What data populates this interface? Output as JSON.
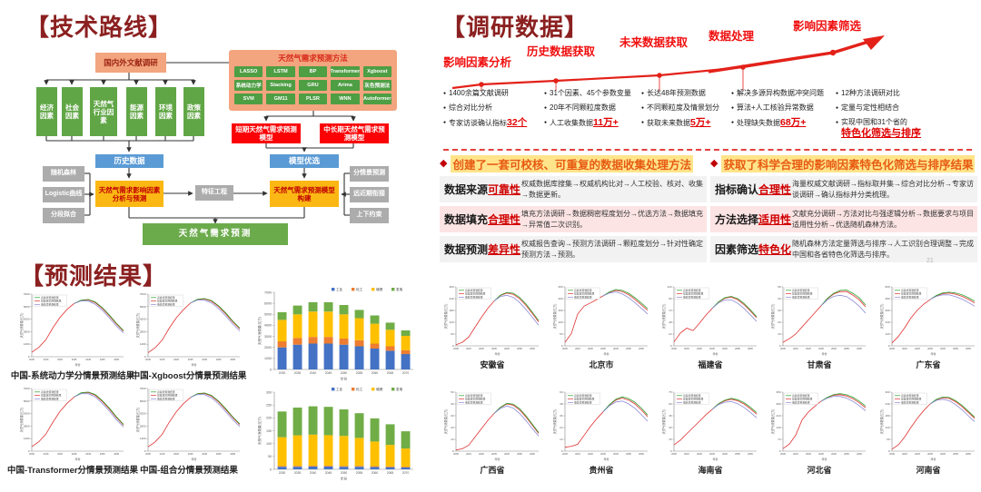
{
  "colors": {
    "maroon": "#8B2020",
    "accent_red": "#E32119",
    "bar": [
      "#4472C4",
      "#ED7D31",
      "#FFC000",
      "#70AD47"
    ],
    "line": [
      "#2CA02C",
      "#E03131",
      "#8A8AD6"
    ]
  },
  "left": {
    "tech_title": "【技术路线】",
    "result_title": "【预测结果】",
    "flow": {
      "literature": "国内外文献调研",
      "methods_panel_title": "天然气需求预测方法",
      "methods": [
        [
          "LASSO",
          "LSTM",
          "BP",
          "Transformer",
          "Xgboost"
        ],
        [
          "系统动力学",
          "Stacking",
          "GRU",
          "Arima",
          "灰色预测法"
        ],
        [
          "SVM",
          "GM11",
          "PLSR",
          "WNN",
          "Autoformer"
        ]
      ],
      "factors": [
        "经济因素",
        "社会因素",
        "天然气行业因素",
        "能源因素",
        "环境因素",
        "政策因素"
      ],
      "short_model": "短期天然气需求预测模型",
      "long_model": "中长期天然气需求预测模型",
      "history_data": "历史数据",
      "model_select": "模型优选",
      "left_aux": [
        "随机森林",
        "Logistic曲线",
        "分段拟合"
      ],
      "right_aux": [
        "分情景预测",
        "远近期衔接",
        "上下约束"
      ],
      "influence_box": "天然气需求影响因素分析与预测",
      "feature_box": "特征工程",
      "build_box": "天然气需求预测模型构建",
      "final_box": "天然气需求预测"
    }
  },
  "right": {
    "title": "【调研数据】",
    "page_number": "21",
    "timeline": {
      "stages": [
        {
          "label": "影响因素分析",
          "bullets": [
            {
              "t": "1400余篇文献调研"
            },
            {
              "t": "综合对比分析"
            },
            {
              "t": "专家访谈确认指标",
              "h": "32个"
            }
          ]
        },
        {
          "label": "历史数据获取",
          "bullets": [
            {
              "t": "31个因素、45个参数变量"
            },
            {
              "t": "20年不同颗粒度数据"
            },
            {
              "t": "人工收集数据",
              "h": "11万+"
            }
          ]
        },
        {
          "label": "未来数据获取",
          "bullets": [
            {
              "t": "长达48年预测数据"
            },
            {
              "t": "不同颗粒度及情景划分"
            },
            {
              "t": "获取未来数据",
              "h": "5万+"
            }
          ]
        },
        {
          "label": "数据处理",
          "bullets": [
            {
              "t": "解决多源异构数据冲突问题"
            },
            {
              "t": "算法+人工核验异常数据"
            },
            {
              "t": "处理缺失数据",
              "h": "68万+"
            }
          ]
        },
        {
          "label": "影响因素筛选",
          "bullets": [
            {
              "t": "12种方法调研对比"
            },
            {
              "t": "定量与定性相结合"
            },
            {
              "t": "实现中国和31个省的",
              "h": "特色化筛选与排序",
              "h_block": true
            }
          ]
        }
      ]
    },
    "sections": [
      {
        "header": "创建了一套可校核、可重复的数据收集处理方法",
        "rows": [
          {
            "label": "数据来源",
            "key": "可靠性",
            "desc": "权威数据库搜集→权威机构比对→人工校验、核对、收集→数据更新。"
          },
          {
            "label": "数据填充",
            "key": "合理性",
            "desc": "填充方法调研→数据稠密程度划分→优选方法→数据填充→异常值二次识别。"
          },
          {
            "label": "数据预测",
            "key": "差异性",
            "desc": "权威报告查询→预测方法调研→颗粒度划分→针对性确定预测方法→预测。"
          }
        ]
      },
      {
        "header": "获取了科学合理的影响因素特色化筛选与排序结果",
        "rows": [
          {
            "label": "指标确认",
            "key": "合理性",
            "desc": "海量权威文献调研→指标取并集→综合对比分析→专家访谈调研→确认指标并分类梳理。"
          },
          {
            "label": "方法选择",
            "key": "适用性",
            "desc": "文献充分调研→方法对比与强逻辑分析→数据要求与项目适用性分析→优选随机森林方法。"
          },
          {
            "label": "因素筛选",
            "key": "特色化",
            "desc": "随机森林方法定量筛选与排序→人工识别合理调整→完成中国和各省特色化筛选与排序。"
          }
        ]
      }
    ]
  },
  "chart_data": [
    {
      "type": "line",
      "caption": "中国-系统动力学分情景预测结果",
      "x": [
        2005,
        2010,
        2015,
        2020,
        2025,
        2030,
        2035,
        2040,
        2045,
        2050,
        2055,
        2060,
        2065,
        2070
      ],
      "ylim": [
        0,
        7000
      ],
      "ylabel": "天然气消费量(亿方)",
      "xlabel": "年份",
      "legend": [
        "高情景预测结果",
        "基准情景预测结果",
        "低情景预测结果"
      ],
      "base": [
        500,
        1050,
        1900,
        3250,
        4400,
        5300,
        5950,
        6300,
        6350,
        6050,
        5400,
        4550,
        3650,
        2850
      ],
      "diverge_year": 2035,
      "hf": 1.03,
      "lf": 0.93
    },
    {
      "type": "line",
      "caption": "中国-Xgboost分情景预测结果",
      "x": [
        2005,
        2010,
        2015,
        2020,
        2025,
        2030,
        2035,
        2040,
        2045,
        2050,
        2055,
        2060,
        2065,
        2070
      ],
      "ylim": [
        0,
        7000
      ],
      "ylabel": "天然气消费量(亿方)",
      "xlabel": "年份",
      "legend": [
        "高情景预测结果",
        "基准情景预测结果",
        "低情景预测结果"
      ],
      "base": [
        450,
        1000,
        1850,
        3200,
        4350,
        5250,
        6000,
        6400,
        6450,
        6200,
        5600,
        4800,
        3900,
        3100
      ],
      "diverge_year": 2035,
      "hf": 1.03,
      "lf": 0.93
    },
    {
      "type": "line",
      "caption": "中国-Transformer分情景预测结果",
      "x": [
        2005,
        2010,
        2015,
        2020,
        2025,
        2030,
        2035,
        2040,
        2045,
        2050,
        2055,
        2060,
        2065,
        2070
      ],
      "ylim": [
        0,
        7000
      ],
      "ylabel": "天然气消费量(亿方)",
      "xlabel": "年份",
      "legend": [
        "高情景预测结果",
        "基准情景预测结果",
        "低情景预测结果"
      ],
      "base": [
        500,
        1050,
        1900,
        3250,
        4450,
        5350,
        6050,
        6500,
        6550,
        6250,
        5550,
        4700,
        3750,
        2900
      ],
      "diverge_year": 2035,
      "hf": 1.03,
      "lf": 0.93
    },
    {
      "type": "line",
      "caption": "中国-组合分情景预测结果",
      "x": [
        2005,
        2010,
        2015,
        2020,
        2025,
        2030,
        2035,
        2040,
        2045,
        2050,
        2055,
        2060,
        2065,
        2070
      ],
      "ylim": [
        0,
        7000
      ],
      "ylabel": "天然气消费量(亿方)",
      "xlabel": "年份",
      "legend": [
        "高情景预测结果",
        "基准情景预测结果",
        "低情景预测结果"
      ],
      "base": [
        480,
        1030,
        1880,
        3230,
        4400,
        5300,
        6000,
        6400,
        6450,
        6150,
        5500,
        4650,
        3750,
        2950
      ],
      "diverge_year": 2035,
      "hf": 1.03,
      "lf": 0.93
    },
    {
      "type": "bar",
      "x": [
        2030,
        2035,
        2040,
        2045,
        2050,
        2055,
        2060,
        2065,
        2070
      ],
      "ylim": [
        0,
        7000
      ],
      "ytick": 1000,
      "ylabel": "天然气消费量(亿方)",
      "xlabel": "年份",
      "series": [
        {
          "name": "工业",
          "values": [
            2000,
            2250,
            2350,
            2350,
            2250,
            2100,
            1900,
            1700,
            1400
          ]
        },
        {
          "name": "化工",
          "values": [
            550,
            600,
            600,
            600,
            550,
            550,
            450,
            400,
            350
          ]
        },
        {
          "name": "城燃",
          "values": [
            1950,
            2150,
            2300,
            2300,
            2200,
            2000,
            1800,
            1500,
            1300
          ]
        },
        {
          "name": "发电",
          "values": [
            700,
            800,
            850,
            850,
            850,
            750,
            750,
            650,
            500
          ]
        }
      ]
    },
    {
      "type": "bar",
      "x": [
        2030,
        2035,
        2040,
        2045,
        2050,
        2055,
        2060,
        2065,
        2070
      ],
      "ylim": [
        0,
        300
      ],
      "ytick": 50,
      "ylabel": "天然气消费量(亿方)",
      "xlabel": "年份",
      "series": [
        {
          "name": "工业",
          "values": [
            10,
            10,
            11,
            11,
            10,
            10,
            9,
            8,
            7
          ]
        },
        {
          "name": "化工",
          "values": [
            3,
            3,
            3,
            3,
            3,
            3,
            3,
            3,
            3
          ]
        },
        {
          "name": "城燃",
          "values": [
            112,
            119,
            121,
            119,
            117,
            109,
            96,
            84,
            71
          ]
        },
        {
          "name": "发电",
          "values": [
            100,
            108,
            110,
            110,
            103,
            96,
            90,
            80,
            67
          ]
        }
      ]
    },
    {
      "type": "line",
      "caption": "安徽省",
      "x": [
        2005,
        2010,
        2015,
        2020,
        2025,
        2030,
        2035,
        2040,
        2045,
        2050,
        2055,
        2060,
        2065,
        2070
      ],
      "ylim": [
        0,
        300
      ],
      "ylabel": "天然气消费量(亿方)",
      "xlabel": "年份",
      "legend": [
        "高情景预测结果",
        "基准情景预测结果",
        "低情景预测结果"
      ],
      "base": [
        5,
        18,
        45,
        95,
        145,
        190,
        228,
        256,
        268,
        262,
        240,
        206,
        165,
        122
      ],
      "diverge_year": 2035,
      "hf": 1.05,
      "lf": 0.86
    },
    {
      "type": "line",
      "caption": "北京市",
      "x": [
        2005,
        2010,
        2015,
        2020,
        2025,
        2030,
        2035,
        2040,
        2045,
        2050,
        2055,
        2060,
        2065,
        2070
      ],
      "ylim": [
        0,
        250
      ],
      "ylabel": "天然气消费量(亿方)",
      "xlabel": "年份",
      "legend": [
        "高情景预测结果",
        "基准情景预测结果",
        "低情景预测结果"
      ],
      "base": [
        15,
        52,
        135,
        168,
        182,
        196,
        212,
        227,
        235,
        230,
        217,
        197,
        174,
        150
      ],
      "diverge_year": 2035,
      "hf": 1.05,
      "lf": 0.9
    },
    {
      "type": "line",
      "caption": "福建省",
      "x": [
        2005,
        2010,
        2015,
        2020,
        2025,
        2030,
        2035,
        2040,
        2045,
        2050,
        2055,
        2060,
        2065,
        2070
      ],
      "ylim": [
        0,
        120
      ],
      "ylabel": "天然气消费量(亿方)",
      "xlabel": "年份",
      "legend": [
        "高情景预测结果",
        "基准情景预测结果",
        "低情景预测结果"
      ],
      "base": [
        8,
        26,
        36,
        31,
        46,
        62,
        76,
        89,
        97,
        99,
        94,
        84,
        71,
        57
      ],
      "diverge_year": 2035,
      "hf": 1.04,
      "lf": 0.87
    },
    {
      "type": "line",
      "caption": "甘肃省",
      "x": [
        2005,
        2010,
        2015,
        2020,
        2025,
        2030,
        2035,
        2040,
        2045,
        2050,
        2055,
        2060,
        2065,
        2070
      ],
      "ylim": [
        0,
        50
      ],
      "ylabel": "天然气消费量(亿方)",
      "xlabel": "年份",
      "legend": [
        "高情景预测结果",
        "基准情景预测结果",
        "低情景预测结果"
      ],
      "base": [
        3,
        6,
        10,
        16,
        22,
        28,
        34,
        40,
        44,
        46,
        46,
        43,
        39,
        33
      ],
      "diverge_year": 2035,
      "hf": 1.05,
      "lf": 0.84
    },
    {
      "type": "line",
      "caption": "广东省",
      "x": [
        2005,
        2010,
        2015,
        2020,
        2025,
        2030,
        2035,
        2040,
        2045,
        2050,
        2055,
        2060,
        2065,
        2070
      ],
      "ylim": [
        0,
        600
      ],
      "ylabel": "天然气消费量(亿方)",
      "xlabel": "年份",
      "legend": [
        "高情景预测结果",
        "基准情景预测结果",
        "低情景预测结果"
      ],
      "base": [
        30,
        95,
        185,
        285,
        365,
        425,
        472,
        510,
        532,
        536,
        525,
        504,
        474,
        438
      ],
      "diverge_year": 2035,
      "hf": 1.04,
      "lf": 0.92
    },
    {
      "type": "line",
      "caption": "广西省",
      "x": [
        2005,
        2010,
        2015,
        2020,
        2025,
        2030,
        2035,
        2040,
        2045,
        2050,
        2055,
        2060,
        2065,
        2070
      ],
      "ylim": [
        0,
        50
      ],
      "ylabel": "天然气消费量(亿方)",
      "xlabel": "年份",
      "legend": [
        "高情景预测结果",
        "基准情景预测结果",
        "低情景预测结果"
      ],
      "base": [
        1,
        2,
        5,
        12,
        19,
        26,
        32,
        37,
        40,
        39,
        35,
        29,
        22,
        15
      ],
      "diverge_year": 2035,
      "hf": 1.05,
      "lf": 0.85
    },
    {
      "type": "line",
      "caption": "贵州省",
      "x": [
        2005,
        2010,
        2015,
        2020,
        2025,
        2030,
        2035,
        2040,
        2045,
        2050,
        2055,
        2060,
        2065,
        2070
      ],
      "ylim": [
        0,
        60
      ],
      "ylabel": "天然气消费量(亿方)",
      "xlabel": "年份",
      "legend": [
        "高情景预测结果",
        "基准情景预测结果",
        "低情景预测结果"
      ],
      "base": [
        4,
        5,
        7,
        16,
        25,
        33,
        40,
        47,
        52,
        54,
        52,
        48,
        42,
        35
      ],
      "diverge_year": 2035,
      "hf": 1.05,
      "lf": 0.87
    },
    {
      "type": "line",
      "caption": "海南省",
      "x": [
        2005,
        2010,
        2015,
        2020,
        2025,
        2030,
        2035,
        2040,
        2045,
        2050,
        2055,
        2060,
        2065,
        2070
      ],
      "ylim": [
        0,
        75
      ],
      "ylabel": "天然气消费量(亿方)",
      "xlabel": "年份",
      "legend": [
        "高情景预测结果",
        "基准情景预测结果",
        "低情景预测结果"
      ],
      "base": [
        8,
        14,
        22,
        30,
        38,
        46,
        53,
        60,
        64,
        66,
        64,
        60,
        54,
        47
      ],
      "diverge_year": 2035,
      "hf": 1.04,
      "lf": 0.9
    },
    {
      "type": "line",
      "caption": "河北省",
      "x": [
        2005,
        2010,
        2015,
        2020,
        2025,
        2030,
        2035,
        2040,
        2045,
        2050,
        2055,
        2060,
        2065,
        2070
      ],
      "ylim": [
        0,
        350
      ],
      "ylabel": "天然气消费量(亿方)",
      "xlabel": "年份",
      "legend": [
        "高情景预测结果",
        "基准情景预测结果",
        "低情景预测结果"
      ],
      "base": [
        15,
        42,
        95,
        185,
        232,
        266,
        296,
        318,
        332,
        335,
        327,
        311,
        287,
        257
      ],
      "diverge_year": 2035,
      "hf": 1.04,
      "lf": 0.93
    },
    {
      "type": "line",
      "caption": "河南省",
      "x": [
        2005,
        2010,
        2015,
        2020,
        2025,
        2030,
        2035,
        2040,
        2045,
        2050,
        2055,
        2060,
        2065,
        2070
      ],
      "ylim": [
        0,
        300
      ],
      "ylabel": "天然气消费量(亿方)",
      "xlabel": "年份",
      "legend": [
        "高情景预测结果",
        "基准情景预测结果",
        "低情景预测结果"
      ],
      "base": [
        10,
        32,
        72,
        122,
        167,
        207,
        240,
        262,
        272,
        268,
        251,
        227,
        197,
        167
      ],
      "diverge_year": 2035,
      "hf": 1.04,
      "lf": 0.9
    }
  ]
}
